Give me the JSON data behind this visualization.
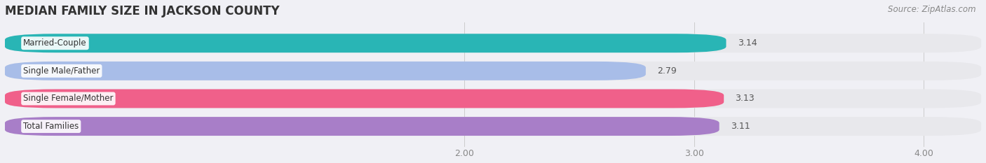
{
  "title": "MEDIAN FAMILY SIZE IN JACKSON COUNTY",
  "source": "Source: ZipAtlas.com",
  "categories": [
    "Married-Couple",
    "Single Male/Father",
    "Single Female/Mother",
    "Total Families"
  ],
  "values": [
    3.14,
    2.79,
    3.13,
    3.11
  ],
  "bar_colors": [
    "#29b5b5",
    "#a8bde8",
    "#f0608a",
    "#a87ec8"
  ],
  "bar_bg_color": "#e8e8ec",
  "xlim": [
    0.0,
    4.25
  ],
  "xticks": [
    2.0,
    3.0,
    4.0
  ],
  "xtick_labels": [
    "2.00",
    "3.00",
    "4.00"
  ],
  "bar_height": 0.68,
  "bar_gap": 0.32,
  "label_fontsize": 8.5,
  "value_fontsize": 9,
  "title_fontsize": 12,
  "source_fontsize": 8.5,
  "background_color": "#f0f0f5"
}
